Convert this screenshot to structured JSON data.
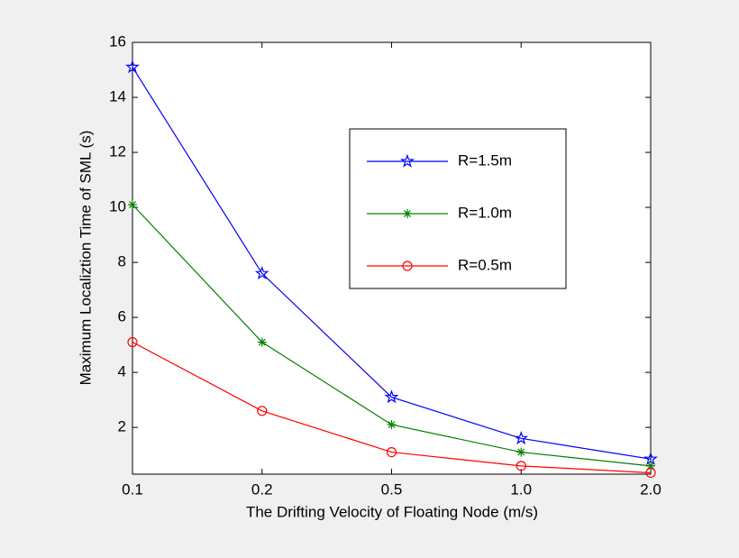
{
  "chart_data": {
    "type": "line",
    "xlabel": "The Drifting Velocity of Floating Node (m/s)",
    "ylabel": "Maximum Localiztion Time of SML (s)",
    "categories": [
      "0.1",
      "0.2",
      "0.5",
      "1.0",
      "2.0"
    ],
    "series": [
      {
        "name": "R=1.5m",
        "color": "#0000ff",
        "marker": "star",
        "values": [
          15.1,
          7.6,
          3.1,
          1.6,
          0.85
        ]
      },
      {
        "name": "R=1.0m",
        "color": "#008000",
        "marker": "asterisk",
        "values": [
          10.1,
          5.1,
          2.1,
          1.1,
          0.6
        ]
      },
      {
        "name": "R=0.5m",
        "color": "#ff0000",
        "marker": "circle",
        "values": [
          5.1,
          2.6,
          1.1,
          0.6,
          0.35
        ]
      }
    ],
    "ylim": [
      0.3,
      16
    ],
    "yticks": [
      2,
      4,
      6,
      8,
      10,
      12,
      14,
      16
    ],
    "grid": false,
    "legend": "upper right"
  }
}
